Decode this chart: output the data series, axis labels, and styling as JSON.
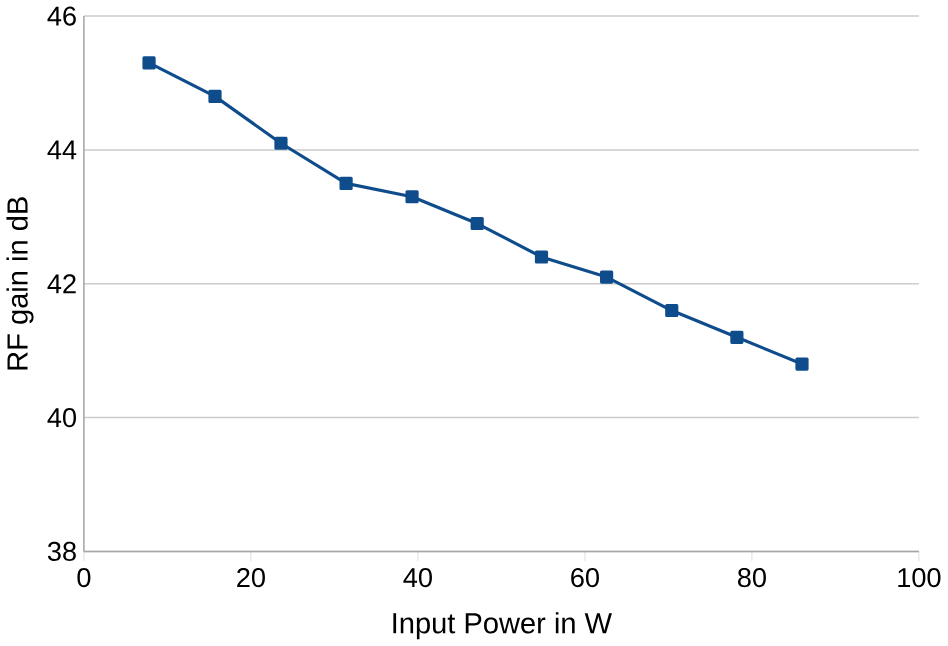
{
  "chart_data": {
    "type": "line",
    "xlabel": "Input Power in W",
    "ylabel": "RF gain in dB",
    "x": [
      7.8,
      15.7,
      23.6,
      31.4,
      39.3,
      47.1,
      54.8,
      62.6,
      70.4,
      78.2,
      86.0
    ],
    "series": [
      {
        "color": "#0f4c8c",
        "values": [
          45.3,
          44.8,
          44.1,
          43.5,
          43.3,
          42.9,
          42.4,
          42.1,
          41.6,
          41.2,
          40.8
        ]
      }
    ],
    "xlim": [
      0,
      100
    ],
    "xticks": [
      0,
      20,
      40,
      60,
      80,
      100
    ],
    "ylim": [
      38,
      46
    ],
    "yticks": [
      38,
      40,
      42,
      44,
      46
    ],
    "grid": "y",
    "marker": "square",
    "line_style": "solid"
  }
}
